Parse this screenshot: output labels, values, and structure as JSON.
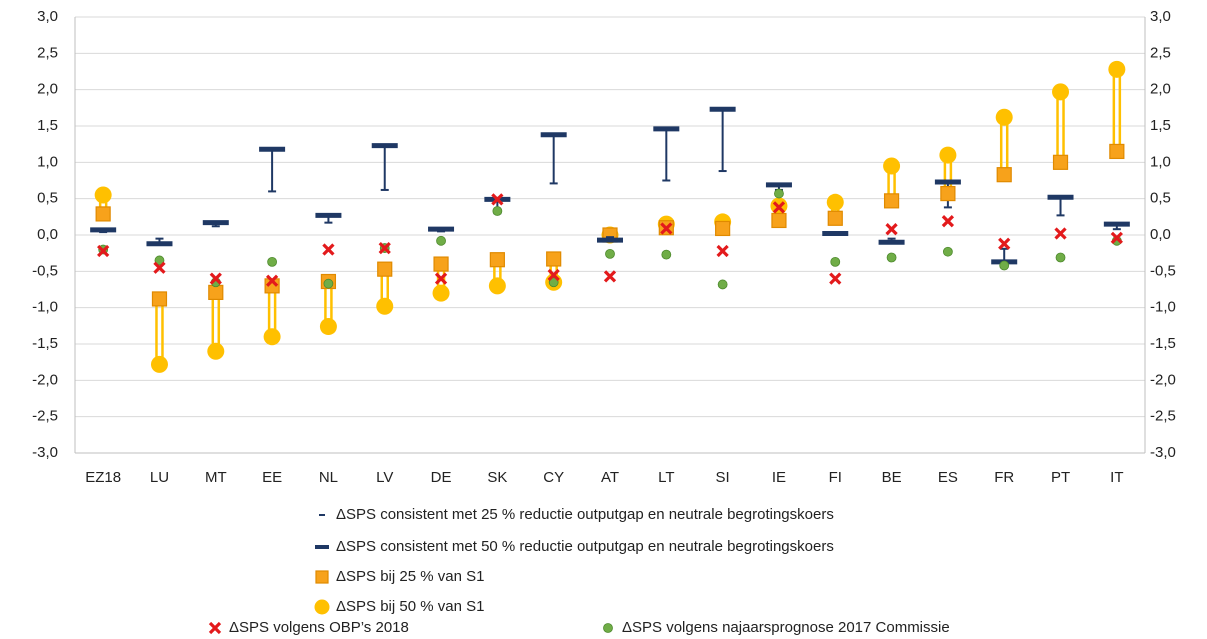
{
  "chart_data": {
    "type": "range",
    "categories": [
      "EZ18",
      "LU",
      "MT",
      "EE",
      "NL",
      "LV",
      "DE",
      "SK",
      "CY",
      "AT",
      "LT",
      "SI",
      "IE",
      "FI",
      "BE",
      "ES",
      "FR",
      "PT",
      "IT"
    ],
    "ylim": [
      -3,
      3
    ],
    "yticks": [
      {
        "value": -3,
        "label": "-3,0"
      },
      {
        "value": -2.5,
        "label": "-2,5"
      },
      {
        "value": -2,
        "label": "-2,0"
      },
      {
        "value": -1.5,
        "label": "-1,5"
      },
      {
        "value": -1,
        "label": "-1,0"
      },
      {
        "value": -0.5,
        "label": "-0,5"
      },
      {
        "value": 0,
        "label": "0,0"
      },
      {
        "value": 0.5,
        "label": "0,5"
      },
      {
        "value": 1,
        "label": "1,0"
      },
      {
        "value": 1.5,
        "label": "1,5"
      },
      {
        "value": 2,
        "label": "2,0"
      },
      {
        "value": 2.5,
        "label": "2,5"
      },
      {
        "value": 3,
        "label": "3,0"
      }
    ],
    "grid": true,
    "series": [
      {
        "name": "ΔSPS consistent met 25 % reductie outputgap en neutrale begrotingskoers",
        "color": "#1f3864",
        "marker": "thin-dash",
        "values": [
          0.04,
          -0.05,
          0.12,
          0.6,
          0.17,
          0.62,
          0.05,
          0.3,
          0.71,
          -0.03,
          0.75,
          0.88,
          0.62,
          0.01,
          -0.05,
          0.38,
          -0.19,
          0.27,
          0.08
        ]
      },
      {
        "name": "ΔSPS consistent met 50 % reductie outputgap en neutrale begrotingskoers",
        "color": "#1f3864",
        "marker": "thick-dash",
        "values": [
          0.07,
          -0.12,
          0.17,
          1.18,
          0.27,
          1.23,
          0.08,
          0.49,
          1.38,
          -0.07,
          1.46,
          1.73,
          0.69,
          0.02,
          -0.1,
          0.73,
          -0.37,
          0.52,
          0.15
        ]
      },
      {
        "name": "ΔSPS bij 25 % van S1",
        "color": "#f7a21b",
        "marker": "square",
        "values": [
          0.29,
          -0.88,
          -0.79,
          -0.7,
          -0.64,
          -0.47,
          -0.4,
          -0.34,
          -0.33,
          0.0,
          0.1,
          0.09,
          0.2,
          0.23,
          0.47,
          0.57,
          0.83,
          1.0,
          1.15
        ]
      },
      {
        "name": "ΔSPS bij 50 % van S1",
        "color": "#ffc000",
        "marker": "circle",
        "values": [
          0.55,
          -1.78,
          -1.6,
          -1.4,
          -1.26,
          -0.98,
          -0.8,
          -0.7,
          -0.65,
          0.0,
          0.15,
          0.18,
          0.4,
          0.45,
          0.95,
          1.1,
          1.62,
          1.97,
          2.28
        ]
      },
      {
        "name": "ΔSPS volgens OBP’s 2018",
        "color": "#e31a1c",
        "marker": "cross",
        "values": [
          -0.22,
          -0.45,
          -0.6,
          -0.63,
          -0.2,
          -0.18,
          -0.6,
          0.49,
          -0.55,
          -0.57,
          0.09,
          -0.22,
          0.38,
          -0.6,
          0.08,
          0.19,
          -0.12,
          0.02,
          -0.04
        ]
      },
      {
        "name": "ΔSPS volgens najaarsprognose 2017 Commissie",
        "color": "#70ad47",
        "marker": "dot",
        "values": [
          -0.2,
          -0.35,
          -0.65,
          -0.37,
          -0.67,
          -0.18,
          -0.08,
          0.33,
          -0.65,
          -0.26,
          -0.27,
          -0.68,
          0.57,
          -0.37,
          -0.31,
          -0.23,
          -0.42,
          -0.31,
          -0.08
        ]
      }
    ]
  }
}
